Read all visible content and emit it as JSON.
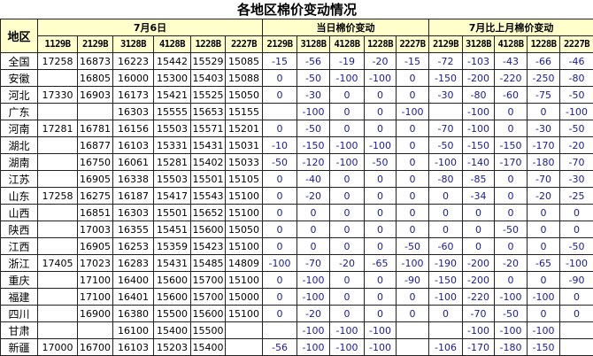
{
  "title": "各地区棉价变动情况",
  "header": {
    "region": "地区",
    "group_price": "7月6日",
    "group_daily": "当日棉价变动",
    "group_monthly": "7月比上月棉价变动",
    "price_codes": [
      "1129B",
      "2129B",
      "3128B",
      "4128B",
      "1228B",
      "2227B"
    ],
    "change_codes": [
      "2129B",
      "3128B",
      "4128B",
      "1228B",
      "2227B"
    ]
  },
  "colors": {
    "header_bg": "#ffffcc",
    "change_text": "#1a1a9c",
    "border": "#222222"
  },
  "rows": [
    {
      "region": "全国",
      "prices": [
        "17258",
        "16873",
        "16223",
        "15442",
        "15529",
        "15085"
      ],
      "daily": [
        "-15",
        "-56",
        "-19",
        "-20",
        "-15"
      ],
      "monthly": [
        "-72",
        "-103",
        "-43",
        "-66",
        "-46"
      ]
    },
    {
      "region": "安徽",
      "prices": [
        "",
        "16805",
        "16000",
        "15300",
        "15403",
        "15088"
      ],
      "daily": [
        "0",
        "-50",
        "-100",
        "-100",
        "0"
      ],
      "monthly": [
        "-150",
        "-200",
        "-220",
        "-250",
        "-80"
      ]
    },
    {
      "region": "河北",
      "prices": [
        "17330",
        "16903",
        "16173",
        "15421",
        "15525",
        "15050"
      ],
      "daily": [
        "0",
        "-30",
        "0",
        "0",
        "0"
      ],
      "monthly": [
        "-30",
        "-80",
        "-60",
        "-75",
        "-50"
      ]
    },
    {
      "region": "广东",
      "prices": [
        "",
        "",
        "16303",
        "15555",
        "15653",
        "15155"
      ],
      "daily": [
        "",
        "-100",
        "0",
        "0",
        "-100"
      ],
      "monthly": [
        "",
        "-100",
        "0",
        "0",
        "-100"
      ]
    },
    {
      "region": "河南",
      "prices": [
        "17281",
        "16781",
        "16156",
        "15503",
        "15571",
        "15201"
      ],
      "daily": [
        "0",
        "-50",
        "0",
        "0",
        "0"
      ],
      "monthly": [
        "-70",
        "-100",
        "0",
        "-30",
        "-50"
      ]
    },
    {
      "region": "湖北",
      "prices": [
        "",
        "16877",
        "16103",
        "15331",
        "15431",
        "15031"
      ],
      "daily": [
        "-10",
        "-150",
        "-100",
        "-100",
        "0"
      ],
      "monthly": [
        "-50",
        "-150",
        "-150",
        "-170",
        "-20"
      ]
    },
    {
      "region": "湖南",
      "prices": [
        "",
        "16750",
        "16061",
        "15281",
        "15402",
        "15033"
      ],
      "daily": [
        "-50",
        "-120",
        "-100",
        "-50",
        "0"
      ],
      "monthly": [
        "-100",
        "-140",
        "-170",
        "-180",
        "-70"
      ]
    },
    {
      "region": "江苏",
      "prices": [
        "",
        "16905",
        "16338",
        "15503",
        "15501",
        "15105"
      ],
      "daily": [
        "0",
        "-40",
        "0",
        "0",
        "0"
      ],
      "monthly": [
        "-80",
        "-85",
        "0",
        "-70",
        "-30"
      ]
    },
    {
      "region": "山东",
      "prices": [
        "17258",
        "16275",
        "16187",
        "15417",
        "15543",
        "15100"
      ],
      "daily": [
        "0",
        "-20",
        "0",
        "0",
        "0"
      ],
      "monthly": [
        "0",
        "-34",
        "0",
        "-20",
        "-25"
      ]
    },
    {
      "region": "山西",
      "prices": [
        "",
        "16851",
        "16303",
        "15501",
        "15652",
        "15100"
      ],
      "daily": [
        "0",
        "0",
        "0",
        "0",
        "0"
      ],
      "monthly": [
        "0",
        "0",
        "0",
        "0",
        "0"
      ]
    },
    {
      "region": "陕西",
      "prices": [
        "",
        "17003",
        "16355",
        "15451",
        "15600",
        "15050"
      ],
      "daily": [
        "0",
        "0",
        "0",
        "0",
        "0"
      ],
      "monthly": [
        "0",
        "0",
        "-50",
        "0",
        "0"
      ]
    },
    {
      "region": "江西",
      "prices": [
        "",
        "16905",
        "16253",
        "15359",
        "15423",
        "15100"
      ],
      "daily": [
        "0",
        "0",
        "0",
        "0",
        "-50"
      ],
      "monthly": [
        "-60",
        "0",
        "0",
        "0",
        "-50"
      ]
    },
    {
      "region": "浙江",
      "prices": [
        "17405",
        "17023",
        "16283",
        "15431",
        "15485",
        "14809"
      ],
      "daily": [
        "-100",
        "-70",
        "-20",
        "-65",
        "-100"
      ],
      "monthly": [
        "-190",
        "-200",
        "-20",
        "-65",
        "-100"
      ]
    },
    {
      "region": "重庆",
      "prices": [
        "",
        "17100",
        "16400",
        "15600",
        "15700",
        "15100"
      ],
      "daily": [
        "0",
        "-100",
        "0",
        "0",
        "-90"
      ],
      "monthly": [
        "-150",
        "-200",
        "0",
        "0",
        "-90"
      ]
    },
    {
      "region": "福建",
      "prices": [
        "",
        "17100",
        "16401",
        "15600",
        "15700",
        "15000"
      ],
      "daily": [
        "0",
        "-100",
        "0",
        "0",
        "0"
      ],
      "monthly": [
        "-100",
        "-220",
        "-100",
        "-100",
        "0"
      ]
    },
    {
      "region": "四川",
      "prices": [
        "",
        "16900",
        "16380",
        "15500",
        "15600",
        "15100"
      ],
      "daily": [
        "0",
        "-20",
        "0",
        "0",
        "0"
      ],
      "monthly": [
        "0",
        "-70",
        "-50",
        "0",
        "0"
      ]
    },
    {
      "region": "甘肃",
      "prices": [
        "",
        "",
        "16100",
        "15400",
        "15500",
        ""
      ],
      "daily": [
        "",
        "-100",
        "-100",
        "-100",
        ""
      ],
      "monthly": [
        "",
        "-100",
        "-100",
        "-100",
        ""
      ]
    },
    {
      "region": "新疆",
      "prices": [
        "17000",
        "16700",
        "16103",
        "15203",
        "15400",
        ""
      ],
      "daily": [
        "-56",
        "-100",
        "-100",
        "-100",
        ""
      ],
      "monthly": [
        "-106",
        "-170",
        "-180",
        "-150",
        ""
      ]
    }
  ]
}
